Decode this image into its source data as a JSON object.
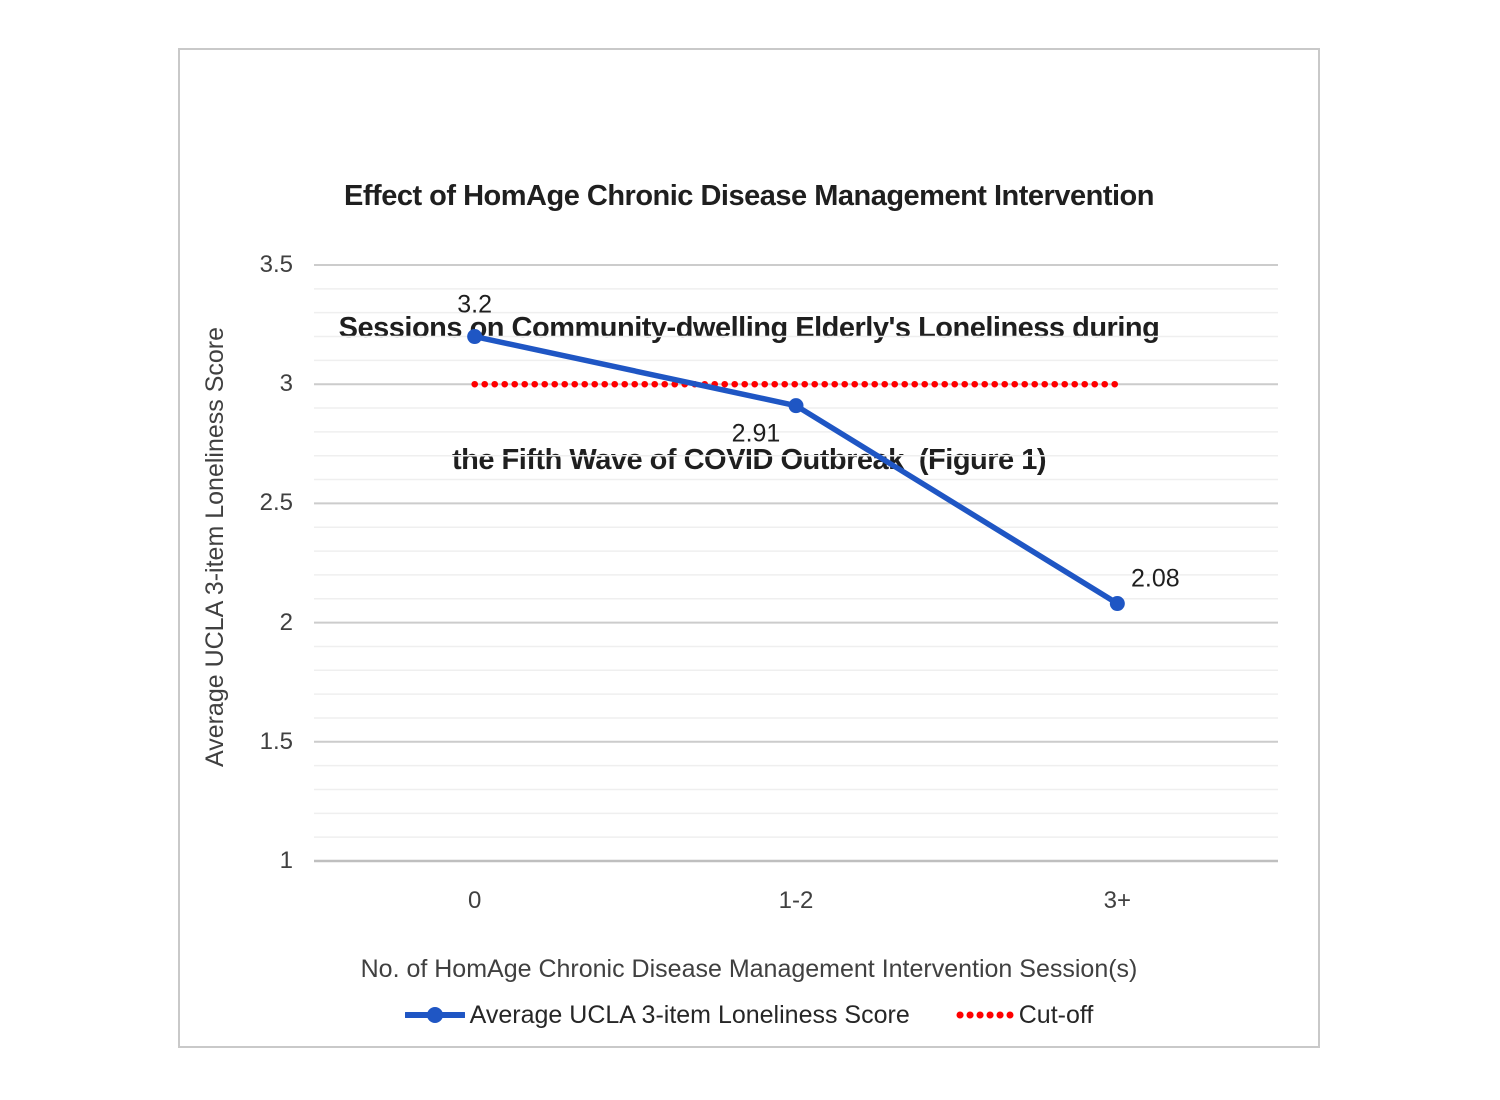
{
  "figure": {
    "title_lines": [
      "Effect of HomAge Chronic Disease Management Intervention",
      "Sessions on Community-dwelling Elderly's Loneliness during",
      "the Fifth Wave of COVID Outbreak  (Figure 1)"
    ]
  },
  "chart_data": {
    "type": "line",
    "title": "Effect of HomAge Chronic Disease Management Intervention Sessions on Community-dwelling Elderly's Loneliness during the Fifth Wave of COVID Outbreak (Figure 1)",
    "categories": [
      "0",
      "1-2",
      "3+"
    ],
    "series": [
      {
        "name": "Average UCLA 3-item Loneliness Score",
        "style": "solid-line-with-markers",
        "color": "#1f56c4",
        "values": [
          3.2,
          2.91,
          2.08
        ],
        "point_labels": [
          "3.2",
          "2.91",
          "2.08"
        ]
      },
      {
        "name": "Cut-off",
        "style": "dotted-line",
        "color": "#fe0000",
        "values": [
          3,
          3,
          3
        ]
      }
    ],
    "xlabel": "No. of HomAge Chronic Disease Management Intervention Session(s)",
    "ylabel": "Average UCLA 3-item Loneliness Score",
    "ylim": [
      1,
      3.5
    ],
    "ytick_labels": [
      "3.5",
      "3",
      "2.5",
      "2",
      "1.5",
      "1"
    ],
    "ytick_values": [
      3.5,
      3,
      2.5,
      2,
      1.5,
      1
    ],
    "ymajor_step": 0.5,
    "yminor_step": 0.1,
    "grid": {
      "major_color": "#cccccc",
      "minor_color": "#efefef",
      "axis_color": "#bfbfbf",
      "minor_on": true
    },
    "legend_position": "bottom"
  }
}
